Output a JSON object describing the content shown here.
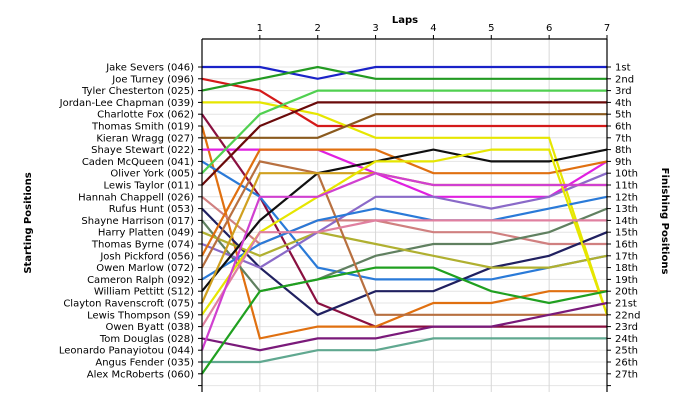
{
  "chart_data": {
    "type": "line",
    "title": "",
    "xlabel": "Laps",
    "ylabel_left": "Starting Positions",
    "ylabel_right": "Finishing Positions",
    "x": [
      0,
      1,
      2,
      3,
      4,
      5,
      6,
      7
    ],
    "x_tick_labels": [
      "1",
      "2",
      "3",
      "4",
      "5",
      "6",
      "7"
    ],
    "y_range": [
      1,
      28
    ],
    "y_inverted": true,
    "grid": true,
    "finishing_labels": [
      "1st",
      "2nd",
      "3rd",
      "4th",
      "5th",
      "6th",
      "7th",
      "8th",
      "9th",
      "10th",
      "11th",
      "12th",
      "13th",
      "14th",
      "15th",
      "16th",
      "17th",
      "18th",
      "19th",
      "20th",
      "21st",
      "22nd",
      "23rd",
      "24th",
      "25th",
      "26th",
      "27th"
    ],
    "series": [
      {
        "name": "Jake Severs (046)",
        "color": "#1a22c8",
        "values": [
          1,
          1,
          2,
          1,
          1,
          1,
          1,
          1
        ]
      },
      {
        "name": "Joe Turney (096)",
        "color": "#d41a1a",
        "values": [
          2,
          3,
          6,
          6,
          6,
          6,
          6,
          6
        ]
      },
      {
        "name": "Tyler Chesterton (025)",
        "color": "#229a22",
        "values": [
          3,
          2,
          1,
          2,
          2,
          2,
          2,
          2
        ]
      },
      {
        "name": "Jordan-Lee Chapman (039)",
        "color": "#e6e600",
        "values": [
          4,
          4,
          5,
          7,
          7,
          7,
          7,
          22
        ]
      },
      {
        "name": "Charlotte Fox (062)",
        "color": "#8a1040",
        "values": [
          5,
          12,
          21,
          23,
          23,
          23,
          23,
          23
        ]
      },
      {
        "name": "Thomas Smith (019)",
        "color": "#e07010",
        "values": [
          6,
          24,
          23,
          23,
          21,
          21,
          20,
          20
        ]
      },
      {
        "name": "Kieran Wragg (027)",
        "color": "#8a5a1e",
        "values": [
          7,
          7,
          7,
          5,
          5,
          5,
          5,
          5
        ]
      },
      {
        "name": "Shaye Stewart (022)",
        "color": "#e020e0",
        "values": [
          8,
          8,
          8,
          10,
          12,
          12,
          12,
          9
        ]
      },
      {
        "name": "Caden McQueen (041)",
        "color": "#2a7ad8",
        "values": [
          9,
          12,
          18,
          19,
          19,
          19,
          18,
          17
        ]
      },
      {
        "name": "Oliver York (005)",
        "color": "#50d050",
        "values": [
          10,
          5,
          3,
          3,
          3,
          3,
          3,
          3
        ]
      },
      {
        "name": "Lewis Taylor (011)",
        "color": "#6a0a0a",
        "values": [
          11,
          6,
          4,
          4,
          4,
          4,
          4,
          4
        ]
      },
      {
        "name": "Hannah Chappell (026)",
        "color": "#d08080",
        "values": [
          12,
          16,
          14,
          14,
          15,
          15,
          16,
          16
        ]
      },
      {
        "name": "Rufus Hunt (053)",
        "color": "#202060",
        "values": [
          13,
          18,
          22,
          20,
          20,
          18,
          17,
          15
        ]
      },
      {
        "name": "Shayne Harrison (017)",
        "color": "#608060",
        "values": [
          14,
          20,
          19,
          17,
          16,
          16,
          15,
          13
        ]
      },
      {
        "name": "Harry Platten (049)",
        "color": "#b0b030",
        "values": [
          15,
          17,
          15,
          16,
          17,
          18,
          18,
          17
        ]
      },
      {
        "name": "Thomas Byrne (074)",
        "color": "#8a6ac8",
        "values": [
          16,
          18,
          15,
          12,
          12,
          13,
          12,
          10
        ]
      },
      {
        "name": "Josh Pickford (056)",
        "color": "#e07010",
        "values": [
          17,
          8,
          8,
          8,
          10,
          10,
          10,
          9
        ]
      },
      {
        "name": "Owen Marlow (072)",
        "color": "#b87040",
        "values": [
          18,
          9,
          10,
          22,
          22,
          22,
          22,
          22
        ]
      },
      {
        "name": "Cameron Ralph (092)",
        "color": "#2a7ad8",
        "values": [
          19,
          16,
          14,
          13,
          14,
          14,
          13,
          12
        ]
      },
      {
        "name": "William Pettitt (S12)",
        "color": "#101010",
        "values": [
          20,
          14,
          10,
          9,
          8,
          9,
          9,
          8
        ]
      },
      {
        "name": "Clayton Ravenscroft (075)",
        "color": "#d0a020",
        "values": [
          21,
          10,
          10,
          10,
          11,
          11,
          11,
          11
        ]
      },
      {
        "name": "Lewis Thompson (S9)",
        "color": "#e6e600",
        "values": [
          22,
          15,
          12,
          9,
          9,
          8,
          8,
          22
        ]
      },
      {
        "name": "Owen Byatt (038)",
        "color": "#e080a0",
        "values": [
          23,
          15,
          15,
          14,
          14,
          14,
          14,
          14
        ]
      },
      {
        "name": "Tom Douglas (028)",
        "color": "#7a1a7a",
        "values": [
          24,
          25,
          24,
          24,
          23,
          23,
          22,
          21
        ]
      },
      {
        "name": "Leonardo Panayiotou (044)",
        "color": "#d040d0",
        "values": [
          25,
          12,
          12,
          10,
          11,
          11,
          11,
          11
        ]
      },
      {
        "name": "Angus Fender (035)",
        "color": "#60a890",
        "values": [
          26,
          26,
          25,
          25,
          24,
          24,
          24,
          24
        ]
      },
      {
        "name": "Alex McRoberts (060)",
        "color": "#20a020",
        "values": [
          27,
          20,
          19,
          18,
          18,
          20,
          21,
          20
        ]
      }
    ]
  }
}
